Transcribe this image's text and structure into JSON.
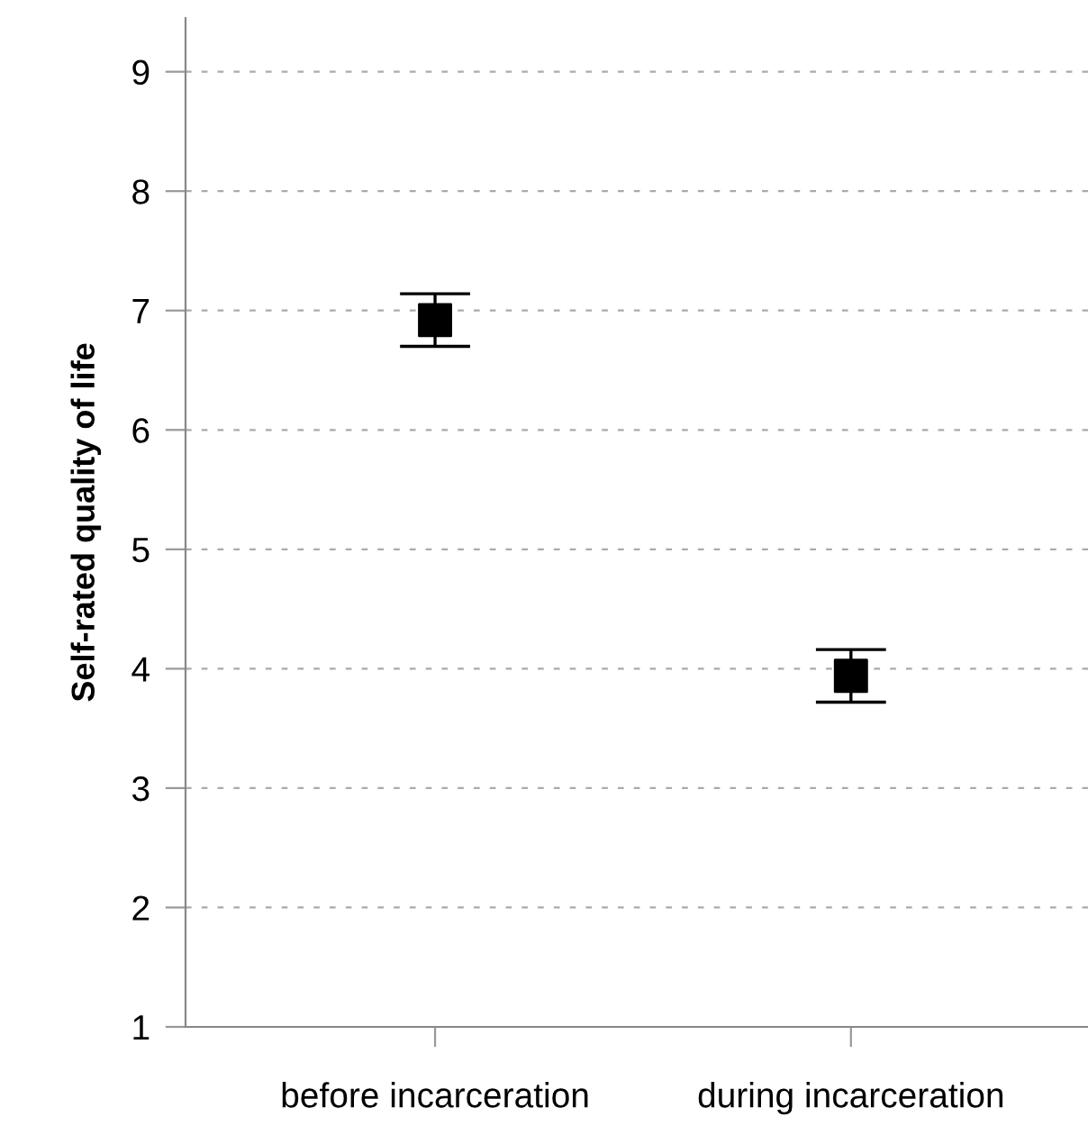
{
  "chart_data": {
    "type": "scatter",
    "ylabel": "Self-rated quality of life",
    "categories": [
      "before incarceration",
      "during incarceration"
    ],
    "series": [
      {
        "color": "#000000",
        "values": [
          6.92,
          3.94
        ],
        "errors": [
          0.22,
          0.22
        ]
      }
    ],
    "ylim": [
      1,
      9.45
    ],
    "yticks": [
      1,
      2,
      3,
      4,
      5,
      6,
      7,
      8,
      9
    ],
    "grid": "y",
    "marker": "square"
  }
}
